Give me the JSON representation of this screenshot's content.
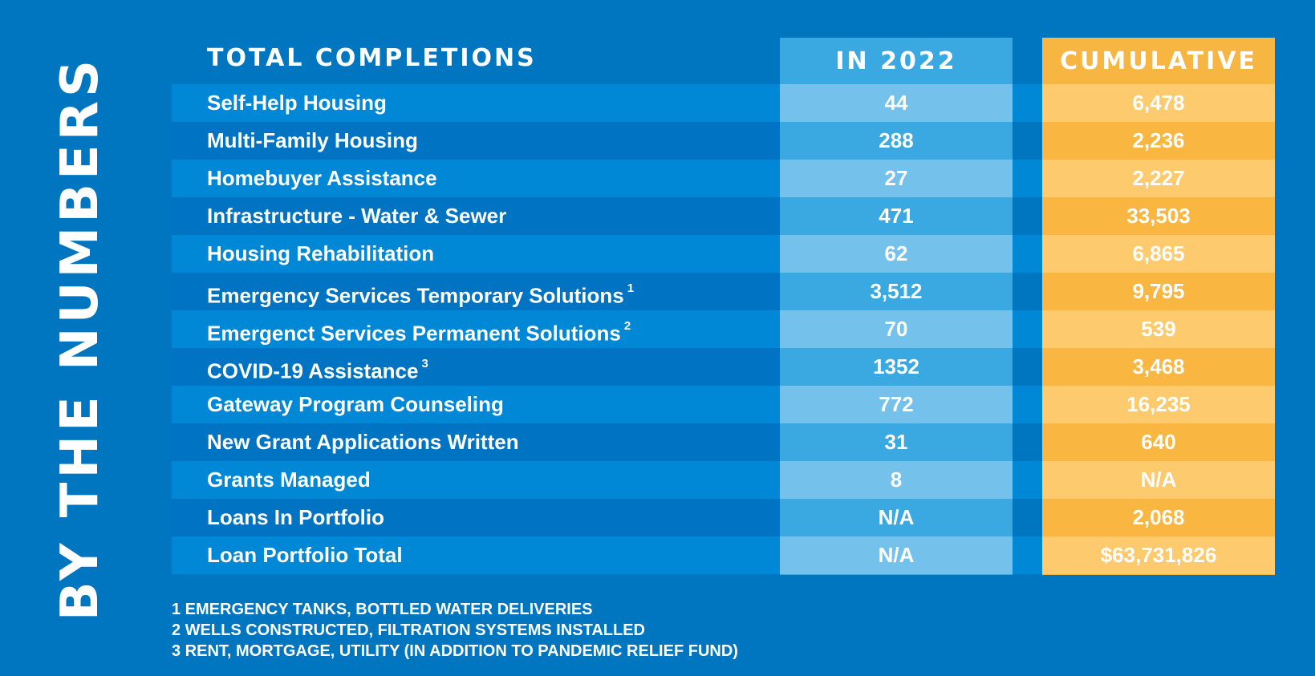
{
  "side_title": "BY THE NUMBERS",
  "table": {
    "header": {
      "label": "TOTAL COMPLETIONS",
      "col_2022": "IN 2022",
      "col_cumulative": "CUMULATIVE"
    },
    "rows": [
      {
        "label": "Self-Help Housing",
        "note": "",
        "in_2022": "44",
        "cumulative": "6,478"
      },
      {
        "label": "Multi-Family Housing",
        "note": "",
        "in_2022": "288",
        "cumulative": "2,236"
      },
      {
        "label": "Homebuyer Assistance",
        "note": "",
        "in_2022": "27",
        "cumulative": "2,227"
      },
      {
        "label": "Infrastructure - Water & Sewer",
        "note": "",
        "in_2022": "471",
        "cumulative": "33,503"
      },
      {
        "label": "Housing Rehabilitation",
        "note": "",
        "in_2022": "62",
        "cumulative": "6,865"
      },
      {
        "label": "Emergency Services Temporary Solutions",
        "note": "1",
        "in_2022": "3,512",
        "cumulative": "9,795"
      },
      {
        "label": "Emergenct Services Permanent Solutions",
        "note": "2",
        "in_2022": "70",
        "cumulative": "539"
      },
      {
        "label": "COVID-19 Assistance",
        "note": "3",
        "in_2022": "1352",
        "cumulative": "3,468"
      },
      {
        "label": "Gateway Program Counseling",
        "note": "",
        "in_2022": "772",
        "cumulative": "16,235"
      },
      {
        "label": "New Grant Applications Written",
        "note": "",
        "in_2022": "31",
        "cumulative": "640"
      },
      {
        "label": "Grants Managed",
        "note": "",
        "in_2022": "8",
        "cumulative": "N/A"
      },
      {
        "label": "Loans In Portfolio",
        "note": "",
        "in_2022": "N/A",
        "cumulative": "2,068"
      },
      {
        "label": "Loan Portfolio Total",
        "note": "",
        "in_2022": "N/A",
        "cumulative": "$63,731,826"
      }
    ]
  },
  "footnotes": [
    "1 EMERGENCY TANKS, BOTTLED WATER DELIVERIES",
    "2 WELLS CONSTRUCTED, FILTRATION SYSTEMS INSTALLED",
    "3 RENT, MORTGAGE, UTILITY (IN ADDITION TO PANDEMIC RELIEF FUND)"
  ],
  "colors": {
    "background": "#0076C0",
    "in_2022_column": "#3AA9E2",
    "cumulative_column": "#F7B541"
  }
}
